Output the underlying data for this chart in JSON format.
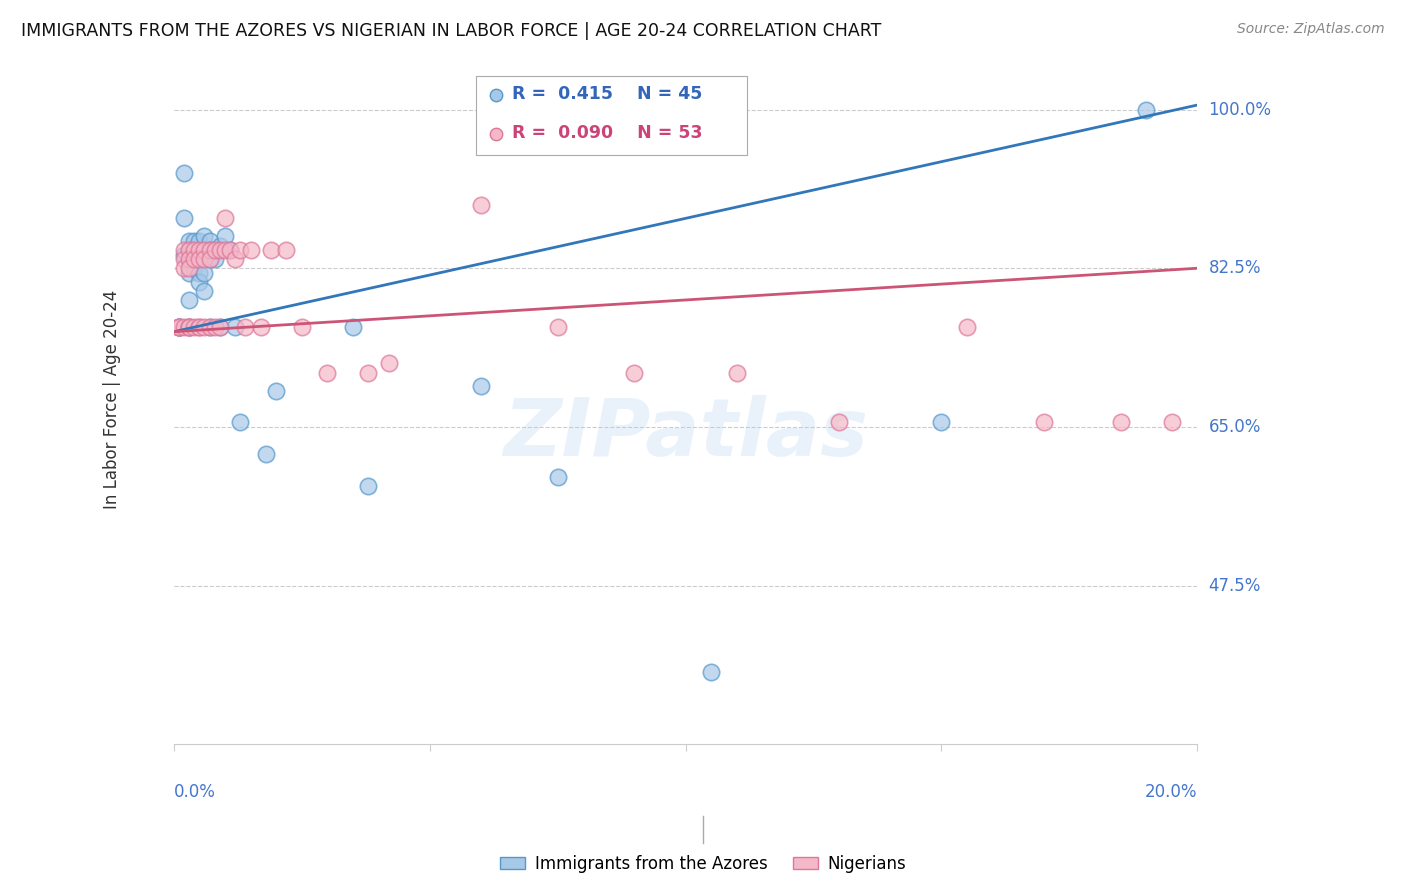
{
  "title": "IMMIGRANTS FROM THE AZORES VS NIGERIAN IN LABOR FORCE | AGE 20-24 CORRELATION CHART",
  "source": "Source: ZipAtlas.com",
  "ylabel": "In Labor Force | Age 20-24",
  "yticks": [
    0.475,
    0.65,
    0.825,
    1.0
  ],
  "ytick_labels": [
    "47.5%",
    "65.0%",
    "82.5%",
    "100.0%"
  ],
  "xmin": 0.0,
  "xmax": 0.2,
  "ymin": 0.3,
  "ymax": 1.06,
  "legend_azores_R": "0.415",
  "legend_azores_N": "45",
  "legend_nigerian_R": "0.090",
  "legend_nigerian_N": "53",
  "blue_color": "#a8c8e8",
  "blue_edge_color": "#5599cc",
  "blue_line_color": "#3377bb",
  "pink_color": "#f5b8c8",
  "pink_edge_color": "#dd7799",
  "pink_line_color": "#cc5577",
  "watermark": "ZIPatlas",
  "azores_x": [
    0.001,
    0.001,
    0.002,
    0.002,
    0.002,
    0.003,
    0.003,
    0.003,
    0.003,
    0.003,
    0.003,
    0.004,
    0.004,
    0.004,
    0.004,
    0.005,
    0.005,
    0.005,
    0.005,
    0.006,
    0.006,
    0.006,
    0.006,
    0.006,
    0.007,
    0.007,
    0.007,
    0.007,
    0.008,
    0.008,
    0.009,
    0.009,
    0.01,
    0.011,
    0.012,
    0.013,
    0.018,
    0.02,
    0.035,
    0.038,
    0.06,
    0.075,
    0.105,
    0.15,
    0.19
  ],
  "azores_y": [
    0.76,
    0.76,
    0.93,
    0.88,
    0.84,
    0.855,
    0.845,
    0.835,
    0.82,
    0.79,
    0.76,
    0.855,
    0.845,
    0.835,
    0.825,
    0.855,
    0.835,
    0.82,
    0.81,
    0.86,
    0.845,
    0.835,
    0.82,
    0.8,
    0.855,
    0.845,
    0.835,
    0.76,
    0.845,
    0.835,
    0.85,
    0.76,
    0.86,
    0.845,
    0.76,
    0.655,
    0.62,
    0.69,
    0.76,
    0.585,
    0.695,
    0.595,
    0.38,
    0.655,
    1.0
  ],
  "nigerian_x": [
    0.001,
    0.001,
    0.001,
    0.002,
    0.002,
    0.002,
    0.002,
    0.003,
    0.003,
    0.003,
    0.003,
    0.003,
    0.003,
    0.004,
    0.004,
    0.004,
    0.005,
    0.005,
    0.005,
    0.005,
    0.006,
    0.006,
    0.006,
    0.007,
    0.007,
    0.007,
    0.008,
    0.008,
    0.009,
    0.009,
    0.01,
    0.01,
    0.011,
    0.012,
    0.013,
    0.014,
    0.015,
    0.017,
    0.019,
    0.022,
    0.025,
    0.03,
    0.038,
    0.042,
    0.06,
    0.075,
    0.09,
    0.11,
    0.13,
    0.155,
    0.17,
    0.185,
    0.195
  ],
  "nigerian_y": [
    0.76,
    0.76,
    0.76,
    0.845,
    0.835,
    0.825,
    0.76,
    0.845,
    0.835,
    0.825,
    0.76,
    0.76,
    0.76,
    0.845,
    0.835,
    0.76,
    0.845,
    0.835,
    0.76,
    0.76,
    0.845,
    0.835,
    0.76,
    0.845,
    0.835,
    0.76,
    0.845,
    0.76,
    0.845,
    0.76,
    0.88,
    0.845,
    0.845,
    0.835,
    0.845,
    0.76,
    0.845,
    0.76,
    0.845,
    0.845,
    0.76,
    0.71,
    0.71,
    0.72,
    0.895,
    0.76,
    0.71,
    0.71,
    0.655,
    0.76,
    0.655,
    0.655,
    0.655
  ]
}
